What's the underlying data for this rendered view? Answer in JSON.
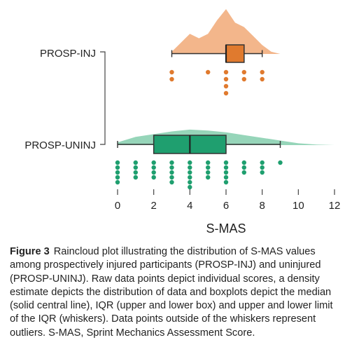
{
  "chart_data": {
    "type": "raincloud",
    "xlabel": "S-MAS",
    "xlim": [
      0,
      12
    ],
    "x_ticks": [
      0,
      2,
      4,
      6,
      8,
      10,
      12
    ],
    "colors": {
      "PROSP-INJ": "#e07a2e",
      "PROSP-UNINJ": "#1f9f6f",
      "density_inj": "#f2b285",
      "density_uninj": "#90d3b5"
    },
    "series": [
      {
        "name": "PROSP-INJ",
        "box": {
          "min": 3,
          "q1": 6,
          "median": 6,
          "q3": 7,
          "max": 8
        },
        "density": [
          [
            3,
            0.05
          ],
          [
            3.5,
            0.25
          ],
          [
            4,
            0.45
          ],
          [
            4.5,
            0.35
          ],
          [
            5,
            0.45
          ],
          [
            5.5,
            0.75
          ],
          [
            6,
            1.0
          ],
          [
            6.5,
            0.7
          ],
          [
            7,
            0.6
          ],
          [
            7.5,
            0.4
          ],
          [
            8,
            0.2
          ],
          [
            8.5,
            0.05
          ],
          [
            9,
            0.0
          ]
        ],
        "points": [
          3,
          3,
          5,
          6,
          6,
          6,
          6,
          7,
          7,
          8,
          8
        ]
      },
      {
        "name": "PROSP-UNINJ",
        "box": {
          "min": 0,
          "q1": 2,
          "median": 4,
          "q3": 6,
          "max": 9
        },
        "density": [
          [
            0,
            0.15
          ],
          [
            1,
            0.45
          ],
          [
            2,
            0.6
          ],
          [
            3,
            0.75
          ],
          [
            4,
            0.85
          ],
          [
            5,
            0.8
          ],
          [
            6,
            0.7
          ],
          [
            7,
            0.55
          ],
          [
            8,
            0.4
          ],
          [
            9,
            0.25
          ],
          [
            10,
            0.1
          ],
          [
            11,
            0.03
          ],
          [
            12,
            0.0
          ]
        ],
        "points": [
          0,
          0,
          0,
          0,
          0,
          1,
          1,
          1,
          1,
          2,
          2,
          2,
          2,
          3,
          3,
          3,
          3,
          3,
          4,
          4,
          4,
          4,
          4,
          4,
          5,
          5,
          5,
          5,
          6,
          6,
          6,
          6,
          6,
          7,
          7,
          7,
          8,
          8,
          8,
          9
        ]
      }
    ]
  },
  "caption": {
    "label": "Figure 3",
    "text": "Raincloud plot illustrating the distribution of S-MAS values among prospectively injured participants (PROSP-INJ) and uninjured (PROSP-UNINJ). Raw data points depict individual scores, a density estimate depicts the distribution of data and boxplots depict the median (solid central line), IQR (upper and lower box) and upper and lower limit of the IQR (whiskers). Data points outside of the whiskers represent outliers. S-MAS, Sprint Mechanics Assessment Score."
  }
}
